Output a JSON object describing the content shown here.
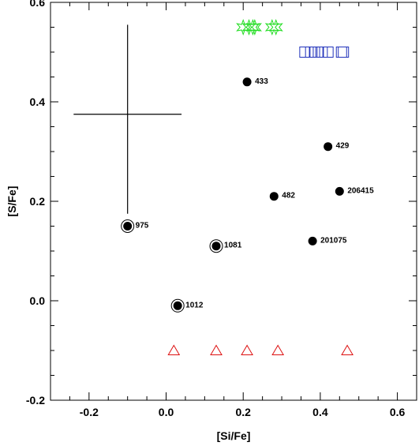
{
  "chart_data": {
    "type": "scatter",
    "xlabel": "[Si/Fe]",
    "ylabel": "[S/Fe]",
    "xlim": [
      -0.3,
      0.65
    ],
    "ylim": [
      -0.2,
      0.6
    ],
    "x_major_ticks": [
      -0.2,
      0.0,
      0.2,
      0.4,
      0.6
    ],
    "x_tick_labels": [
      "-0.2",
      "0.0",
      "0.2",
      "0.4",
      "0.6"
    ],
    "y_major_ticks": [
      -0.2,
      0.0,
      0.2,
      0.4,
      0.6
    ],
    "y_tick_labels": [
      "-0.2",
      "0.0",
      "0.2",
      "0.4",
      "0.6"
    ],
    "grid": false,
    "error_bar": {
      "x": -0.1,
      "y": 0.375,
      "x_err": 0.14,
      "y_err_up": 0.18,
      "y_err_down": 0.2,
      "color": "#000000"
    },
    "series": [
      {
        "marker": "filled-circle",
        "color": "#000000",
        "points": [
          {
            "x": 0.21,
            "y": 0.44,
            "label": "433"
          },
          {
            "x": 0.42,
            "y": 0.31,
            "label": "429"
          },
          {
            "x": 0.28,
            "y": 0.21,
            "label": "482"
          },
          {
            "x": 0.45,
            "y": 0.22,
            "label": "206415"
          },
          {
            "x": 0.38,
            "y": 0.12,
            "label": "201075"
          }
        ]
      },
      {
        "marker": "ringed-circle",
        "color": "#000000",
        "points": [
          {
            "x": -0.1,
            "y": 0.15,
            "label": "975"
          },
          {
            "x": 0.13,
            "y": 0.11,
            "label": "1081"
          },
          {
            "x": 0.03,
            "y": -0.01,
            "label": "1012"
          }
        ]
      },
      {
        "marker": "star",
        "color": "#22dd22",
        "points": [
          {
            "x": 0.2,
            "y": 0.55
          },
          {
            "x": 0.215,
            "y": 0.55
          },
          {
            "x": 0.225,
            "y": 0.55
          },
          {
            "x": 0.23,
            "y": 0.55
          },
          {
            "x": 0.275,
            "y": 0.55
          },
          {
            "x": 0.285,
            "y": 0.55
          }
        ]
      },
      {
        "marker": "square",
        "color": "#2233bb",
        "points": [
          {
            "x": 0.36,
            "y": 0.5
          },
          {
            "x": 0.375,
            "y": 0.5
          },
          {
            "x": 0.385,
            "y": 0.5
          },
          {
            "x": 0.395,
            "y": 0.5
          },
          {
            "x": 0.405,
            "y": 0.5
          },
          {
            "x": 0.42,
            "y": 0.5
          },
          {
            "x": 0.455,
            "y": 0.5
          },
          {
            "x": 0.46,
            "y": 0.5
          }
        ]
      },
      {
        "marker": "triangle",
        "color": "#dd1111",
        "points": [
          {
            "x": 0.02,
            "y": -0.1
          },
          {
            "x": 0.13,
            "y": -0.1
          },
          {
            "x": 0.21,
            "y": -0.1
          },
          {
            "x": 0.29,
            "y": -0.1
          },
          {
            "x": 0.47,
            "y": -0.1
          }
        ]
      }
    ]
  }
}
